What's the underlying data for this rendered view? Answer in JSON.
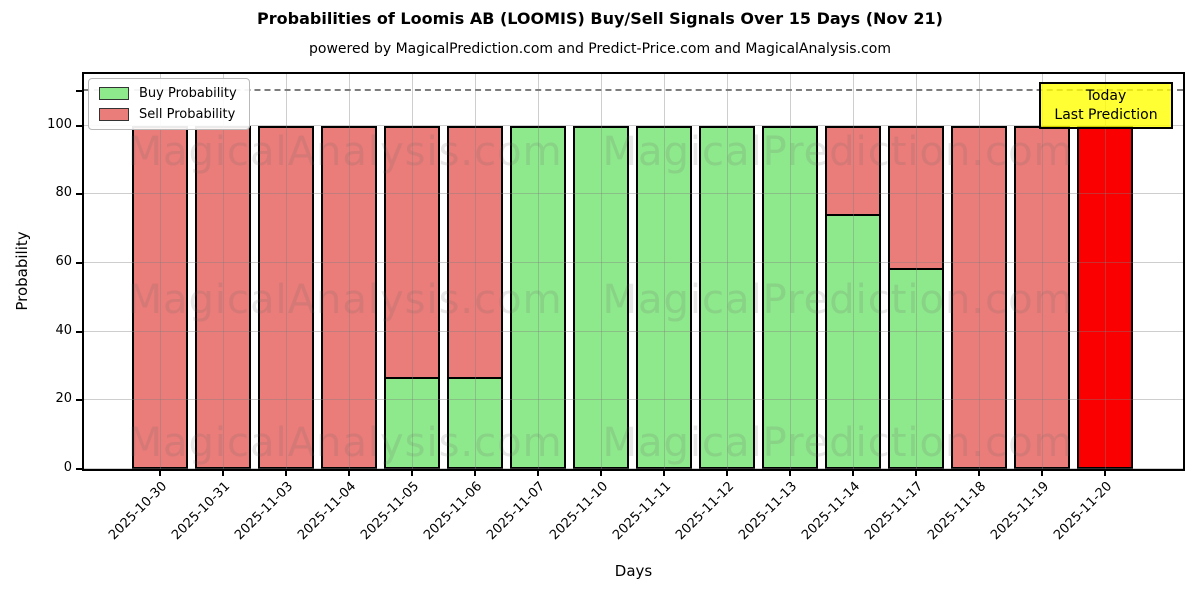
{
  "title": "Probabilities of Loomis AB (LOOMIS) Buy/Sell Signals Over 15 Days (Nov 21)",
  "subtitle": "powered by MagicalPrediction.com and Predict-Price.com and MagicalAnalysis.com",
  "legend": {
    "buy_label": "Buy Probability",
    "sell_label": "Sell Probability"
  },
  "annotation_box": {
    "line1": "Today",
    "line2": "Last Prediction"
  },
  "watermarks": {
    "left": "MagicalAnalysis.com",
    "right": "MagicalPrediction.com"
  },
  "axes": {
    "ylabel": "Probability",
    "xlabel": "Days",
    "minor_yticks": [
      110
    ]
  },
  "colors": {
    "buy": "#8ee88c",
    "sell": "#ea7c7a",
    "today_bar": "#fb0000",
    "annotation_bg": "#ffff00",
    "grid": "#7d7d7d",
    "dashed_line": "#7d7d7d"
  },
  "chart_data": {
    "type": "bar",
    "stacked": true,
    "title": "Probabilities of Loomis AB (LOOMIS) Buy/Sell Signals Over 15 Days (Nov 21)",
    "xlabel": "Days",
    "ylabel": "Probability",
    "categories": [
      "2025-10-30",
      "2025-10-31",
      "2025-11-03",
      "2025-11-04",
      "2025-11-05",
      "2025-11-06",
      "2025-11-07",
      "2025-11-10",
      "2025-11-11",
      "2025-11-12",
      "2025-11-13",
      "2025-11-14",
      "2025-11-17",
      "2025-11-18",
      "2025-11-19",
      "2025-11-20"
    ],
    "series": [
      {
        "name": "Buy Probability",
        "values": [
          0,
          0,
          0,
          0,
          26,
          26,
          100,
          100,
          100,
          100,
          100,
          74,
          58,
          0,
          0,
          0
        ]
      },
      {
        "name": "Sell Probability",
        "values": [
          100,
          100,
          100,
          100,
          74,
          74,
          0,
          0,
          0,
          0,
          0,
          26,
          42,
          100,
          100,
          100
        ]
      }
    ],
    "highlight_index": 15,
    "highlight_note": "Today / Last Prediction bar drawn in solid red",
    "ylim": [
      0,
      115
    ],
    "yticks": [
      0,
      20,
      40,
      60,
      80,
      100
    ],
    "dashed_line_y": 110,
    "grid": true,
    "legend_position": "upper left"
  }
}
